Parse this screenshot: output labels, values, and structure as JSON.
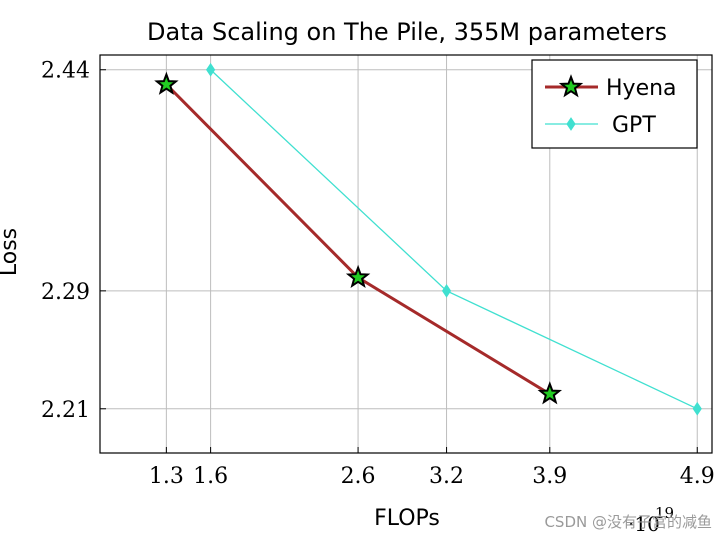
{
  "chart_data": {
    "type": "line",
    "title": "Data Scaling on The Pile, 355M parameters",
    "xlabel": "FLOPs",
    "ylabel": "Loss",
    "x_multiplier": "·10",
    "x_exponent": "19",
    "xlim": [
      0.85,
      5.0
    ],
    "ylim": [
      2.18,
      2.45
    ],
    "xticks": [
      1.3,
      1.6,
      2.6,
      3.2,
      3.9,
      4.9
    ],
    "xtick_labels": [
      "1.3",
      "1.6",
      "2.6",
      "3.2",
      "3.9",
      "4.9"
    ],
    "yticks": [
      2.21,
      2.29,
      2.44
    ],
    "ytick_labels": [
      "2.21",
      "2.29",
      "2.44"
    ],
    "grid": true,
    "legend_position": "top-right",
    "series": [
      {
        "name": "Hyena",
        "color": "#a52a2a",
        "marker": "star",
        "marker_fill": "#22cc22",
        "x": [
          1.3,
          2.6,
          3.9
        ],
        "y": [
          2.43,
          2.299,
          2.22
        ]
      },
      {
        "name": "GPT",
        "color": "#40e0d0",
        "marker": "diamond",
        "x": [
          1.6,
          3.2,
          4.9
        ],
        "y": [
          2.44,
          2.29,
          2.21
        ]
      }
    ]
  },
  "watermark": "CSDN @没有子宫的减鱼"
}
